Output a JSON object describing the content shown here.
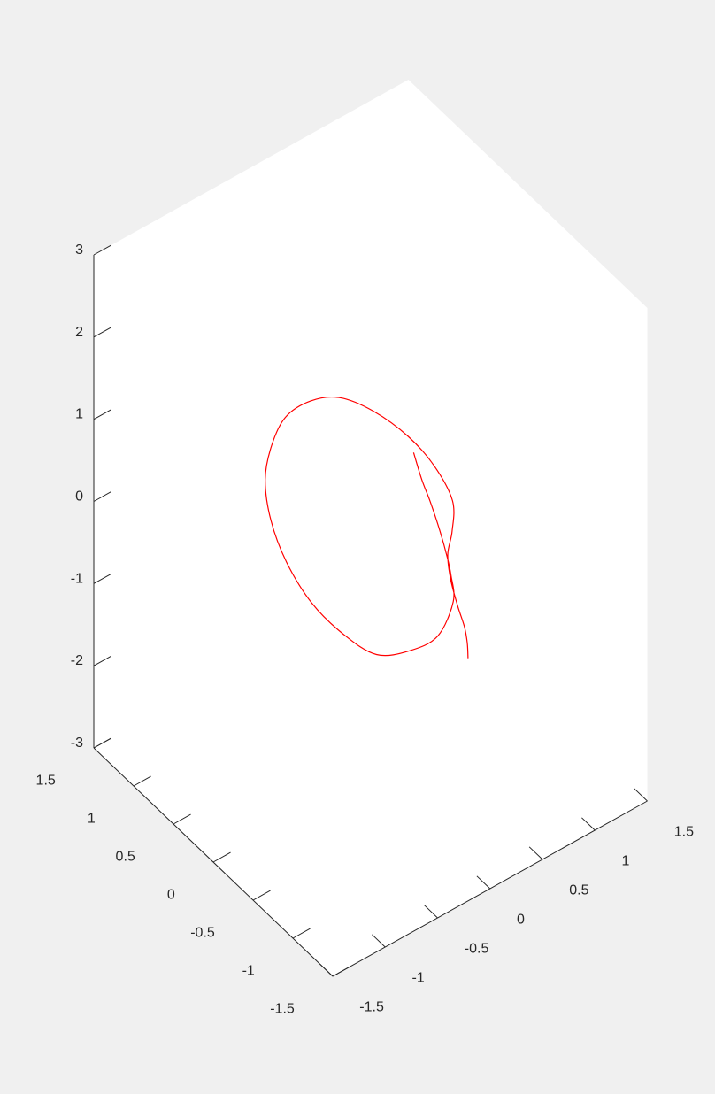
{
  "chart_data": {
    "type": "line",
    "projection": "3d",
    "title": "",
    "xlabel": "",
    "ylabel": "",
    "zlabel": "",
    "grid": false,
    "background": "#f0f0f0",
    "axes_background": "#ffffff",
    "axis_color": "#262626",
    "line_color": "#ff0000",
    "xlim": [
      -1.5,
      1.5
    ],
    "ylim": [
      -1.5,
      1.5
    ],
    "zlim": [
      -3,
      3
    ],
    "x_ticks": [
      "-1.5",
      "-1",
      "-0.5",
      "0",
      "0.5",
      "1",
      "1.5"
    ],
    "y_ticks": [
      "-1.5",
      "-1",
      "-0.5",
      "0",
      "0.5",
      "1",
      "1.5"
    ],
    "z_ticks": [
      "-3",
      "-2",
      "-1",
      "0",
      "1",
      "2",
      "3"
    ],
    "series": [
      {
        "x": [
          0.6,
          0.64,
          0.66,
          0.66,
          0.64,
          0.6,
          0.5,
          0.2,
          -0.1,
          -0.4,
          -0.6,
          -0.75,
          -0.8,
          -0.76,
          -0.64,
          -0.45,
          -0.22,
          0.05,
          0.3,
          0.52,
          0.7,
          0.8,
          0.82,
          0.74,
          0.66,
          0.65,
          0.68,
          0.72,
          0.74,
          0.74
        ],
        "y": [
          0.25,
          0.2,
          0.12,
          0.0,
          -0.12,
          -0.22,
          -0.38,
          -0.58,
          -0.62,
          -0.6,
          -0.45,
          -0.25,
          0.0,
          0.25,
          0.48,
          0.65,
          0.78,
          0.82,
          0.78,
          0.65,
          0.45,
          0.25,
          0.05,
          -0.05,
          -0.1,
          -0.15,
          -0.2,
          -0.23,
          -0.24,
          -0.25
        ],
        "z": [
          0.26,
          -0.05,
          -0.26,
          -0.5,
          -0.7,
          -0.8,
          -0.9,
          -0.92,
          -0.85,
          -0.7,
          -0.45,
          -0.15,
          0.15,
          0.4,
          0.6,
          0.72,
          0.78,
          0.75,
          0.65,
          0.45,
          0.2,
          -0.05,
          -0.3,
          -0.52,
          -0.7,
          -0.95,
          -1.25,
          -1.5,
          -1.7,
          -1.88
        ]
      }
    ]
  }
}
